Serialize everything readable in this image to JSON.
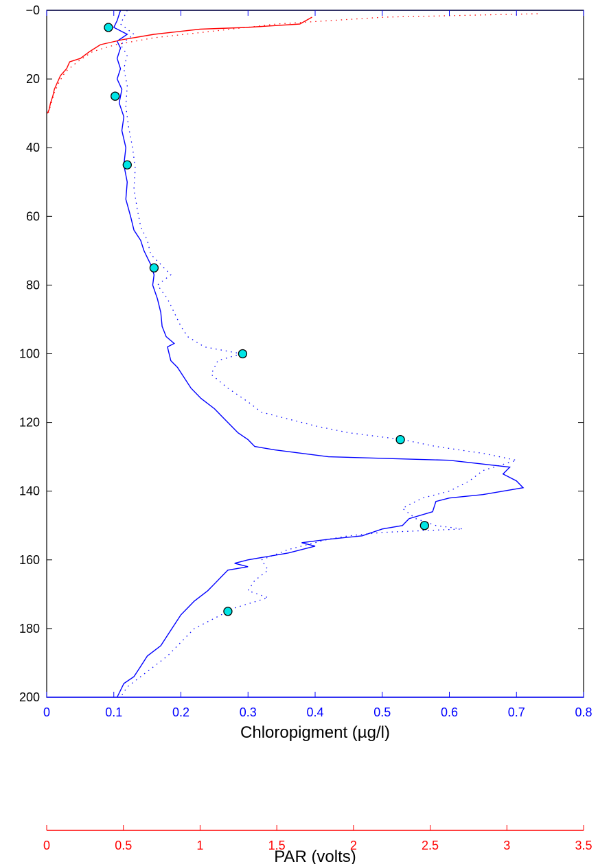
{
  "chart_data": {
    "type": "line",
    "title": "",
    "colors": {
      "chl_axis": "#0000ff",
      "par_axis": "#ff0000",
      "chl_line": "#0000ff",
      "par_line": "#ff0000",
      "samples_fill": "#00e5e5",
      "frame": "#000000"
    },
    "y_axis": {
      "label": "",
      "ylim": [
        0,
        200
      ],
      "reversed": true,
      "ticks": [
        0,
        20,
        40,
        60,
        80,
        100,
        120,
        140,
        160,
        180,
        200
      ],
      "tick_labels": [
        "−0",
        "20",
        "40",
        "60",
        "80",
        "100",
        "120",
        "140",
        "160",
        "180",
        "200"
      ]
    },
    "x_axis_chl": {
      "label": "Chloropigment (µg/l)",
      "xlim": [
        0,
        0.8
      ],
      "ticks": [
        0,
        0.1,
        0.2,
        0.3,
        0.4,
        0.5,
        0.6,
        0.7,
        0.8
      ],
      "tick_labels": [
        "0",
        "0.1",
        "0.2",
        "0.3",
        "0.4",
        "0.5",
        "0.6",
        "0.7",
        "0.8"
      ]
    },
    "x_axis_par": {
      "label": "PAR (volts)",
      "xlim": [
        0,
        3.5
      ],
      "ticks": [
        0,
        0.5,
        1,
        1.5,
        2,
        2.5,
        3,
        3.5
      ],
      "tick_labels": [
        "0",
        "0.5",
        "1",
        "1.5",
        "2",
        "2.5",
        "3",
        "3.5"
      ]
    },
    "series": [
      {
        "kind": "chl_solid",
        "points": [
          [
            0.11,
            0
          ],
          [
            0.105,
            3
          ],
          [
            0.1,
            5
          ],
          [
            0.12,
            7
          ],
          [
            0.105,
            9
          ],
          [
            0.11,
            11
          ],
          [
            0.105,
            14
          ],
          [
            0.11,
            17
          ],
          [
            0.105,
            20
          ],
          [
            0.112,
            23
          ],
          [
            0.108,
            27
          ],
          [
            0.115,
            31
          ],
          [
            0.112,
            35
          ],
          [
            0.118,
            40
          ],
          [
            0.115,
            45
          ],
          [
            0.12,
            50
          ],
          [
            0.118,
            55
          ],
          [
            0.125,
            60
          ],
          [
            0.13,
            64
          ],
          [
            0.14,
            67
          ],
          [
            0.145,
            70
          ],
          [
            0.15,
            72
          ],
          [
            0.155,
            74
          ],
          [
            0.16,
            77
          ],
          [
            0.158,
            80
          ],
          [
            0.165,
            84
          ],
          [
            0.17,
            88
          ],
          [
            0.172,
            92
          ],
          [
            0.178,
            95
          ],
          [
            0.19,
            97
          ],
          [
            0.18,
            98
          ],
          [
            0.185,
            102
          ],
          [
            0.195,
            104
          ],
          [
            0.205,
            107
          ],
          [
            0.215,
            110
          ],
          [
            0.23,
            113
          ],
          [
            0.25,
            116
          ],
          [
            0.26,
            118
          ],
          [
            0.275,
            121
          ],
          [
            0.285,
            123
          ],
          [
            0.3,
            125
          ],
          [
            0.31,
            127
          ],
          [
            0.34,
            128
          ],
          [
            0.42,
            130
          ],
          [
            0.6,
            131
          ],
          [
            0.69,
            133
          ],
          [
            0.68,
            135
          ],
          [
            0.7,
            137
          ],
          [
            0.71,
            139
          ],
          [
            0.65,
            141
          ],
          [
            0.6,
            142
          ],
          [
            0.58,
            143
          ],
          [
            0.575,
            146
          ],
          [
            0.54,
            148
          ],
          [
            0.53,
            150
          ],
          [
            0.5,
            151
          ],
          [
            0.47,
            153
          ],
          [
            0.42,
            154
          ],
          [
            0.38,
            155
          ],
          [
            0.4,
            156
          ],
          [
            0.36,
            158
          ],
          [
            0.3,
            160
          ],
          [
            0.28,
            161
          ],
          [
            0.3,
            162
          ],
          [
            0.27,
            163
          ],
          [
            0.26,
            165
          ],
          [
            0.25,
            167
          ],
          [
            0.24,
            169
          ],
          [
            0.22,
            172
          ],
          [
            0.21,
            174
          ],
          [
            0.2,
            176
          ],
          [
            0.19,
            179
          ],
          [
            0.18,
            182
          ],
          [
            0.17,
            185
          ],
          [
            0.15,
            188
          ],
          [
            0.14,
            191
          ],
          [
            0.13,
            194
          ],
          [
            0.115,
            196
          ],
          [
            0.11,
            198
          ],
          [
            0.105,
            200
          ]
        ]
      },
      {
        "kind": "chl_dotted",
        "points": [
          [
            0.12,
            0
          ],
          [
            0.11,
            4
          ],
          [
            0.13,
            7
          ],
          [
            0.11,
            10
          ],
          [
            0.12,
            13
          ],
          [
            0.115,
            17
          ],
          [
            0.12,
            22
          ],
          [
            0.118,
            28
          ],
          [
            0.122,
            34
          ],
          [
            0.128,
            40
          ],
          [
            0.132,
            46
          ],
          [
            0.13,
            52
          ],
          [
            0.135,
            58
          ],
          [
            0.14,
            63
          ],
          [
            0.15,
            67
          ],
          [
            0.155,
            71
          ],
          [
            0.17,
            74
          ],
          [
            0.185,
            77
          ],
          [
            0.165,
            80
          ],
          [
            0.18,
            84
          ],
          [
            0.19,
            88
          ],
          [
            0.2,
            92
          ],
          [
            0.21,
            95
          ],
          [
            0.235,
            98
          ],
          [
            0.29,
            100
          ],
          [
            0.255,
            102
          ],
          [
            0.245,
            106
          ],
          [
            0.27,
            110
          ],
          [
            0.3,
            114
          ],
          [
            0.32,
            117
          ],
          [
            0.36,
            119
          ],
          [
            0.4,
            121
          ],
          [
            0.45,
            123
          ],
          [
            0.53,
            125
          ],
          [
            0.58,
            127
          ],
          [
            0.65,
            129
          ],
          [
            0.7,
            131
          ],
          [
            0.65,
            134
          ],
          [
            0.63,
            137
          ],
          [
            0.6,
            140
          ],
          [
            0.56,
            142
          ],
          [
            0.53,
            145
          ],
          [
            0.55,
            148
          ],
          [
            0.58,
            150
          ],
          [
            0.62,
            151
          ],
          [
            0.5,
            152
          ],
          [
            0.45,
            153
          ],
          [
            0.42,
            154
          ],
          [
            0.36,
            157
          ],
          [
            0.32,
            160
          ],
          [
            0.33,
            163
          ],
          [
            0.31,
            166
          ],
          [
            0.3,
            169
          ],
          [
            0.33,
            171
          ],
          [
            0.28,
            174
          ],
          [
            0.25,
            177
          ],
          [
            0.22,
            180
          ],
          [
            0.2,
            184
          ],
          [
            0.18,
            188
          ],
          [
            0.16,
            191
          ],
          [
            0.14,
            194
          ],
          [
            0.12,
            197
          ],
          [
            0.11,
            200
          ]
        ]
      },
      {
        "kind": "par_solid",
        "points": [
          [
            1.73,
            2
          ],
          [
            1.65,
            4
          ],
          [
            1.3,
            5
          ],
          [
            1.0,
            5.5
          ],
          [
            0.7,
            7
          ],
          [
            0.5,
            8.5
          ],
          [
            0.35,
            10
          ],
          [
            0.28,
            12
          ],
          [
            0.22,
            14
          ],
          [
            0.15,
            15
          ],
          [
            0.13,
            17
          ],
          [
            0.09,
            19
          ],
          [
            0.07,
            21
          ],
          [
            0.05,
            23
          ],
          [
            0.04,
            25
          ],
          [
            0.025,
            27
          ],
          [
            0.015,
            29
          ],
          [
            0.005,
            30
          ]
        ]
      },
      {
        "kind": "par_dotted",
        "points": [
          [
            3.2,
            1
          ],
          [
            2.2,
            2
          ],
          [
            1.5,
            4
          ],
          [
            1.1,
            6
          ],
          [
            0.7,
            8
          ],
          [
            0.45,
            10
          ],
          [
            0.3,
            12
          ],
          [
            0.2,
            15
          ],
          [
            0.12,
            18
          ],
          [
            0.08,
            21
          ],
          [
            0.05,
            24
          ],
          [
            0.03,
            27
          ],
          [
            0.01,
            30
          ]
        ]
      }
    ],
    "samples": [
      [
        0.092,
        5
      ],
      [
        0.102,
        25
      ],
      [
        0.12,
        45
      ],
      [
        0.16,
        75
      ],
      [
        0.292,
        100
      ],
      [
        0.527,
        125
      ],
      [
        0.563,
        150
      ],
      [
        0.27,
        175
      ]
    ]
  }
}
